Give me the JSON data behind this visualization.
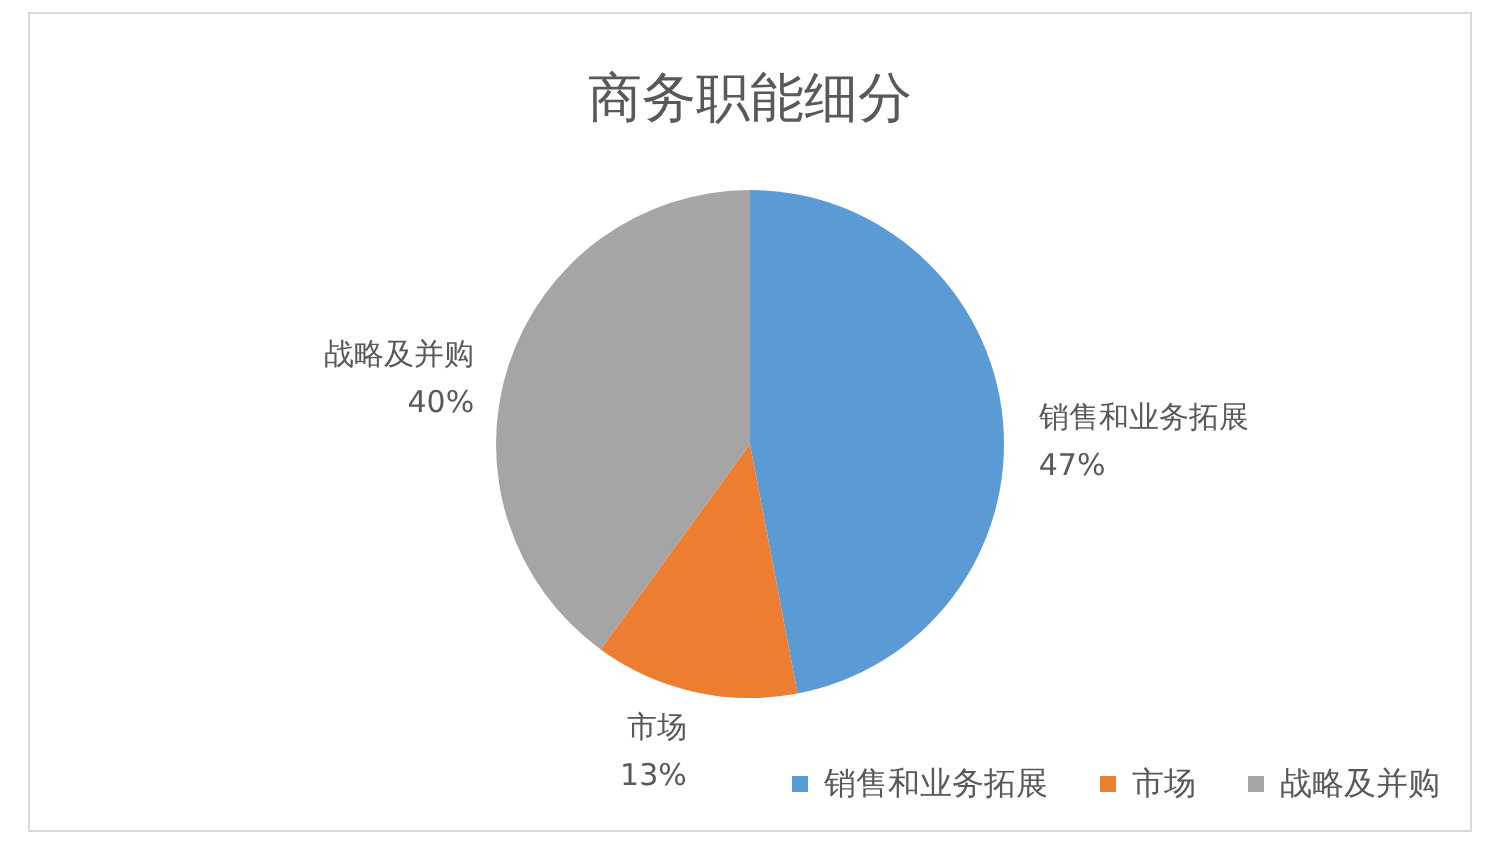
{
  "chart_data": {
    "type": "pie",
    "title": "商务职能细分",
    "categories": [
      "销售和业务拓展",
      "市场",
      "战略及并购"
    ],
    "values": [
      47,
      13,
      40
    ],
    "colors": [
      "#5b9bd5",
      "#ed7d31",
      "#a5a5a5"
    ],
    "value_labels": [
      "47%",
      "13%",
      "40%"
    ],
    "legend": "bottom right"
  }
}
